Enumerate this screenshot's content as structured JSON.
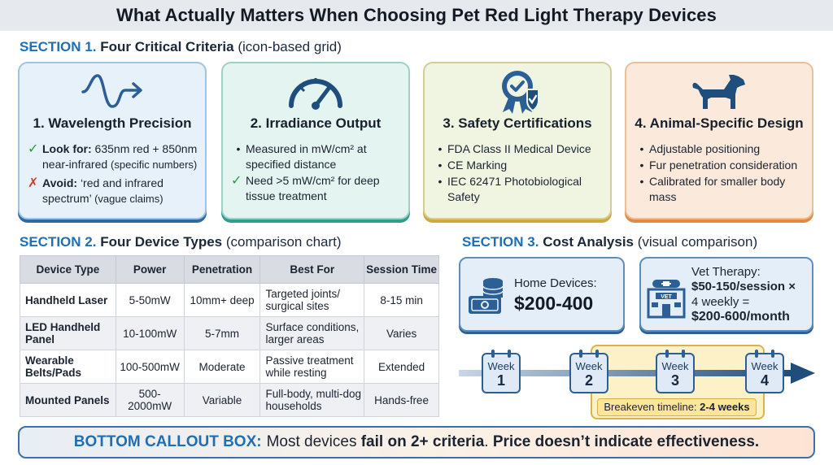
{
  "title": "What Actually Matters When Choosing Pet Red Light Therapy Devices",
  "section1": {
    "num": "SECTION 1.",
    "name": "Four Critical Criteria",
    "note": "(icon-based grid)",
    "cards": [
      {
        "icon": "wave-arrow-icon",
        "title": "1. Wavelength Precision",
        "lookfor_label": "Look for:",
        "lookfor_text": "635nm red + 850nm near-infrared",
        "lookfor_small": "(specific numbers)",
        "avoid_label": "Avoid:",
        "avoid_text": "‘red and infrared spectrum’",
        "avoid_small": "(vague claims)"
      },
      {
        "icon": "gauge-icon",
        "title": "2. Irradiance Output",
        "bullet": "Measured in mW/cm² at specified distance",
        "check": "Need >5 mW/cm² for deep tissue treatment"
      },
      {
        "icon": "certified-badge-icon",
        "title": "3. Safety Certifications",
        "bullets": [
          "FDA Class II Medical Device",
          "CE Marking",
          "IEC 62471 Photobiological Safety"
        ]
      },
      {
        "icon": "dog-icon",
        "title": "4. Animal-Specific Design",
        "bullets": [
          "Adjustable positioning",
          "Fur penetration consideration",
          "Calibrated for smaller body mass"
        ]
      }
    ]
  },
  "section2": {
    "num": "SECTION 2.",
    "name": "Four Device Types",
    "note": "(comparison chart)",
    "headers": [
      "Device Type",
      "Power",
      "Penetration",
      "Best For",
      "Session Time"
    ],
    "rows": [
      [
        "Handheld Laser",
        "5-50mW",
        "10mm+ deep",
        "Targeted joints/ surgical sites",
        "8-15 min"
      ],
      [
        "LED Handheld Panel",
        "10-100mW",
        "5-7mm",
        "Surface conditions, larger areas",
        "Varies"
      ],
      [
        "Wearable Belts/Pads",
        "100-500mW",
        "Moderate",
        "Passive treatment while resting",
        "Extended"
      ],
      [
        "Mounted Panels",
        "500-2000mW",
        "Variable",
        "Full-body, multi-dog households",
        "Hands-free"
      ]
    ]
  },
  "section3": {
    "num": "SECTION 3.",
    "name": "Cost Analysis",
    "note": "(visual comparison)",
    "home_label": "Home Devices:",
    "home_value": "$200-400",
    "vet_label": "Vet Therapy:",
    "vet_rate": "$50-150",
    "vet_rate_suffix": "/session ×",
    "vet_freq": "4 weekly =",
    "vet_month": "$200-600/month",
    "vet_sign": "VET",
    "week_label": "Week",
    "weeks": [
      "1",
      "2",
      "3",
      "4"
    ],
    "breakeven_label": "Breakeven timeline:",
    "breakeven_value": "2-4 weeks"
  },
  "callout": {
    "head": "BOTTOM CALLOUT BOX:",
    "t1": "Most devices",
    "b1": "fail on 2+ criteria",
    "t2": ".",
    "b2": "Price doesn’t indicate effectiveness."
  },
  "colors": {
    "accent_blue": "#1f6fb5",
    "card1": "#2e6aa5",
    "card2": "#2f9c8c",
    "card3": "#d3a640",
    "card4": "#e08b43",
    "check": "#2a9b3a",
    "cross": "#d23a2a"
  }
}
